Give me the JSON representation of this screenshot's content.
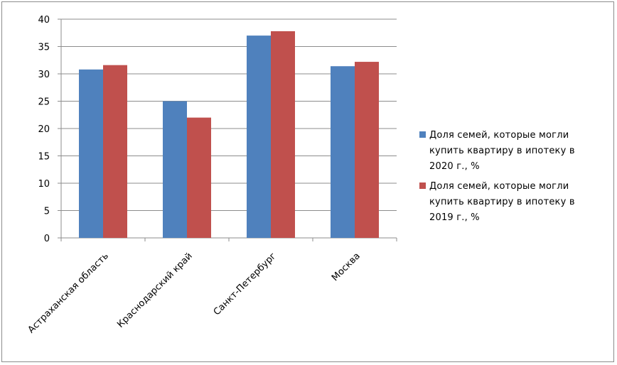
{
  "chart_data": {
    "type": "bar",
    "title": "",
    "xlabel": "",
    "ylabel": "",
    "ylim": [
      0,
      40
    ],
    "yticks": [
      0,
      5,
      10,
      15,
      20,
      25,
      30,
      35,
      40
    ],
    "categories": [
      "Астраханская область",
      "Краснодарский край",
      "Санкт-Петербург",
      "Москва"
    ],
    "series": [
      {
        "name": "Доля семей, которые могли купить квартиру в ипотеку в 2020 г., %",
        "color": "#4f81bd",
        "values": [
          30.8,
          25.0,
          37.0,
          31.4
        ]
      },
      {
        "name": "Доля семей, которые могли купить квартиру в ипотеку в 2019 г., %",
        "color": "#c0504d",
        "values": [
          31.6,
          22.0,
          37.8,
          32.2
        ]
      }
    ],
    "grid": true,
    "legend_position": "right"
  },
  "legend": {
    "items": [
      {
        "lines": [
          "Доля семей, которые могли",
          "купить квартиру в ипотеку в",
          "2020 г., %"
        ]
      },
      {
        "lines": [
          "Доля семей, которые могли",
          "купить квартиру в ипотеку в",
          "2019 г., %"
        ]
      }
    ]
  }
}
